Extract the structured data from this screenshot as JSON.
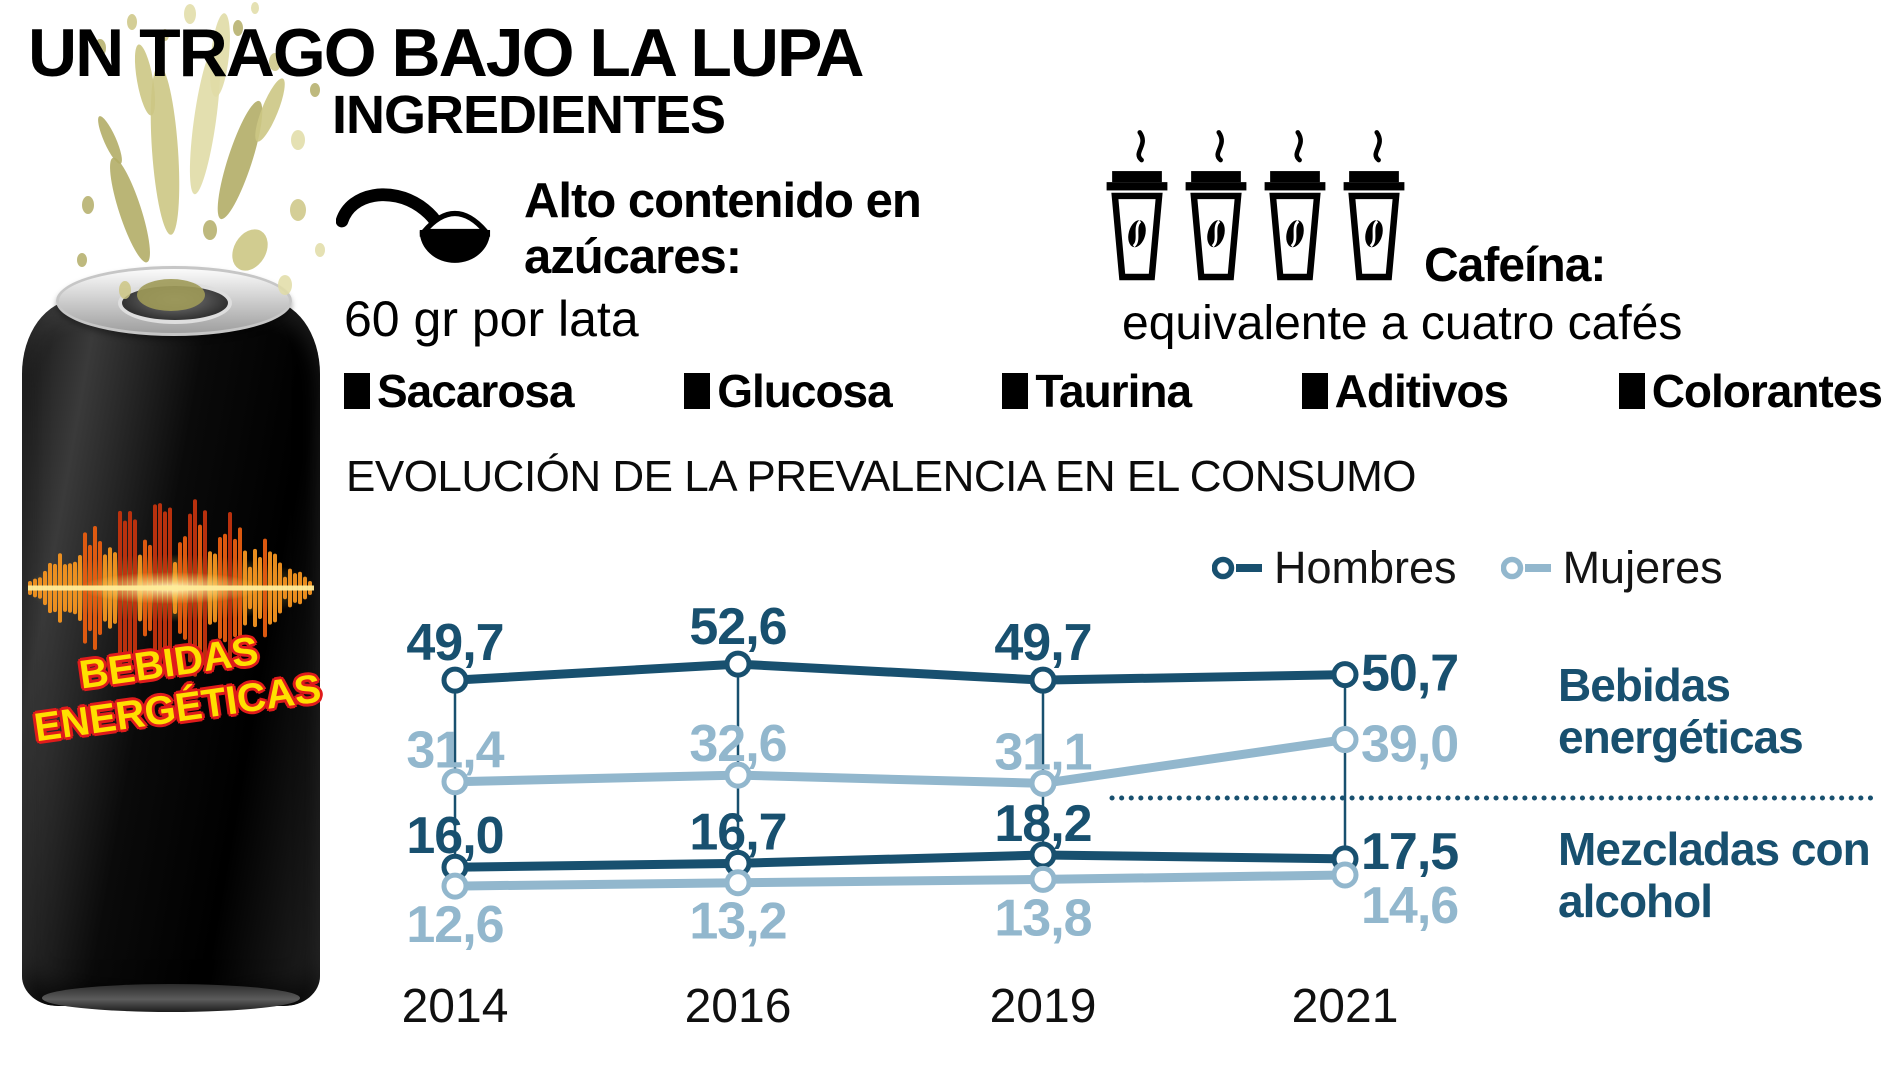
{
  "page_title": "UN TRAGO BAJO LA LUPA",
  "subtitle": "INGREDIENTES",
  "can": {
    "label_line1": "BEBIDAS",
    "label_line2": "ENERGÉTICAS"
  },
  "sugar": {
    "icon": "sugar-spoon-icon",
    "heading": "Alto contenido en azúcares:",
    "detail": "60 gr por lata"
  },
  "caffeine": {
    "icon": "coffee-cup-icon",
    "cups_count": 4,
    "heading": "Cafeína:",
    "detail": "equivalente a cuatro cafés"
  },
  "ingredients": [
    "Sacarosa",
    "Glucosa",
    "Taurina",
    "Aditivos",
    "Colorantes"
  ],
  "chart_data": {
    "type": "line",
    "title": "EVOLUCIÓN DE LA PREVALENCIA EN EL CONSUMO",
    "categories": [
      "2014",
      "2016",
      "2019",
      "2021"
    ],
    "value_format": "one decimal, comma separator",
    "grid": false,
    "legend_position": "top-right",
    "legend": [
      {
        "name": "Hombres",
        "color": "#18506f"
      },
      {
        "name": "Mujeres",
        "color": "#92b7cd"
      }
    ],
    "groups": [
      {
        "label": "Bebidas energéticas",
        "series": [
          {
            "name": "Hombres",
            "color": "#18506f",
            "values": [
              49.7,
              52.6,
              49.7,
              50.7
            ]
          },
          {
            "name": "Mujeres",
            "color": "#92b7cd",
            "values": [
              31.4,
              32.6,
              31.1,
              39.0
            ]
          }
        ]
      },
      {
        "label": "Mezcladas con alcohol",
        "series": [
          {
            "name": "Hombres",
            "color": "#18506f",
            "values": [
              16.0,
              16.7,
              18.2,
              17.5
            ]
          },
          {
            "name": "Mujeres",
            "color": "#92b7cd",
            "values": [
              12.6,
              13.2,
              13.8,
              14.6
            ]
          }
        ]
      }
    ]
  },
  "colors": {
    "dark_series": "#18506f",
    "light_series": "#92b7cd",
    "text_black": "#000000",
    "can_label_yellow": "#ffdf00",
    "can_label_outline_red": "#e01b1b",
    "splash_olive": "#c6c17d",
    "wave_orange": "#f07b1a"
  }
}
